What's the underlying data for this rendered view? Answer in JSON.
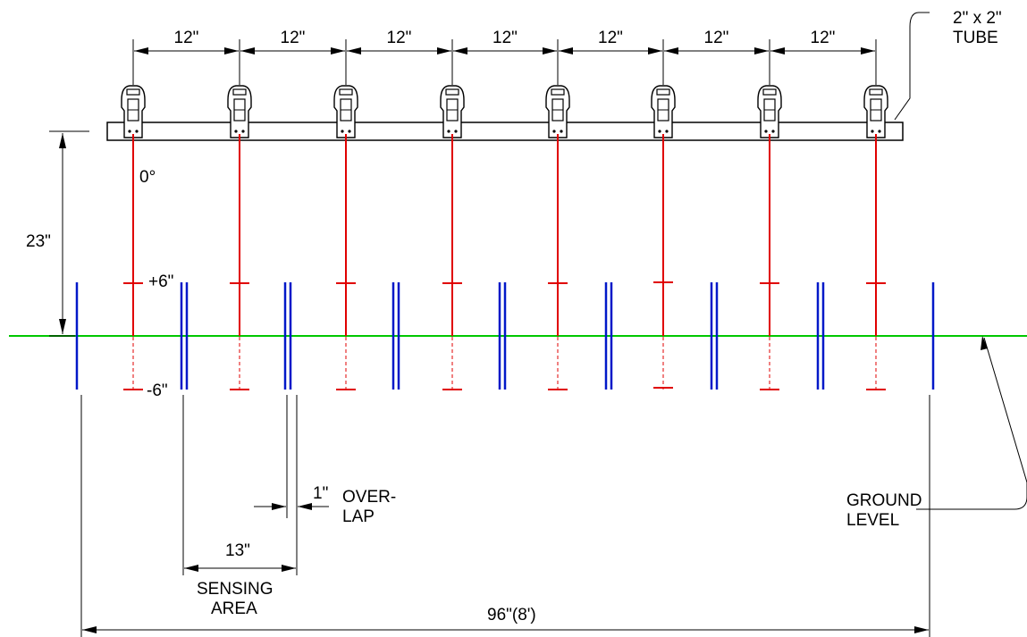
{
  "spacing_labels": [
    "12\"",
    "12\"",
    "12\"",
    "12\"",
    "12\"",
    "12\"",
    "12\""
  ],
  "tube_label": [
    "2\" x 2\"",
    "TUBE"
  ],
  "height_label": "23\"",
  "angle_label": "0°",
  "upper_tol_label": "+6\"",
  "lower_tol_label": "-6\"",
  "overlap_dim": "1\"",
  "overlap_text": [
    "OVER-",
    "LAP"
  ],
  "sensing_dim": "13\"",
  "sensing_text": [
    "SENSING",
    "AREA"
  ],
  "total_dim": "96\"(8')",
  "ground_text": [
    "GROUND",
    "LEVEL"
  ],
  "colors": {
    "beam": "#e00000",
    "coverage": "#0018c8",
    "ground": "#00c800",
    "line": "#000000"
  }
}
